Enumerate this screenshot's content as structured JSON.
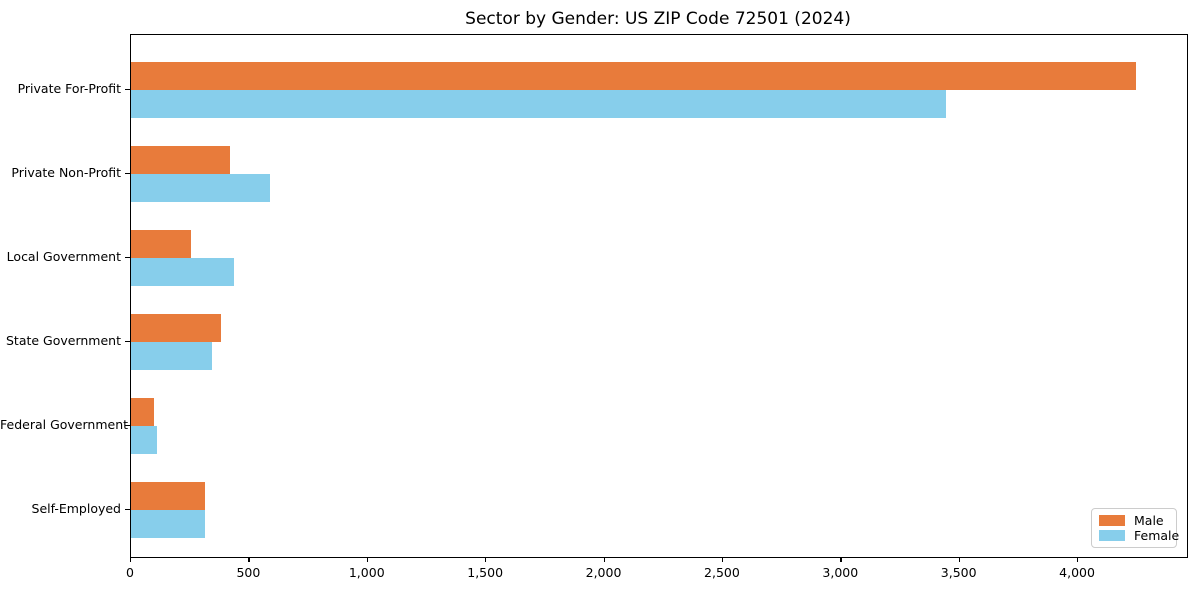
{
  "chart_data": {
    "type": "bar",
    "orientation": "horizontal",
    "title": "Sector by Gender: US ZIP Code 72501 (2024)",
    "categories": [
      "Private For-Profit",
      "Private Non-Profit",
      "Local Government",
      "State Government",
      "Federal Government",
      "Self-Employed"
    ],
    "series": [
      {
        "name": "Male",
        "color": "#e87b3b",
        "values": [
          4246,
          418,
          255,
          381,
          97,
          311
        ]
      },
      {
        "name": "Female",
        "color": "#87ceeb",
        "values": [
          3442,
          587,
          435,
          341,
          111,
          313
        ]
      }
    ],
    "xlabel": "",
    "ylabel": "",
    "xlim": [
      0,
      4460
    ],
    "x_ticks": [
      0,
      500,
      1000,
      1500,
      2000,
      2500,
      3000,
      3500,
      4000
    ],
    "x_tick_labels": [
      "0",
      "500",
      "1,000",
      "1,500",
      "2,000",
      "2,500",
      "3,000",
      "3,500",
      "4,000"
    ],
    "grid": false,
    "legend_position": "lower right"
  }
}
